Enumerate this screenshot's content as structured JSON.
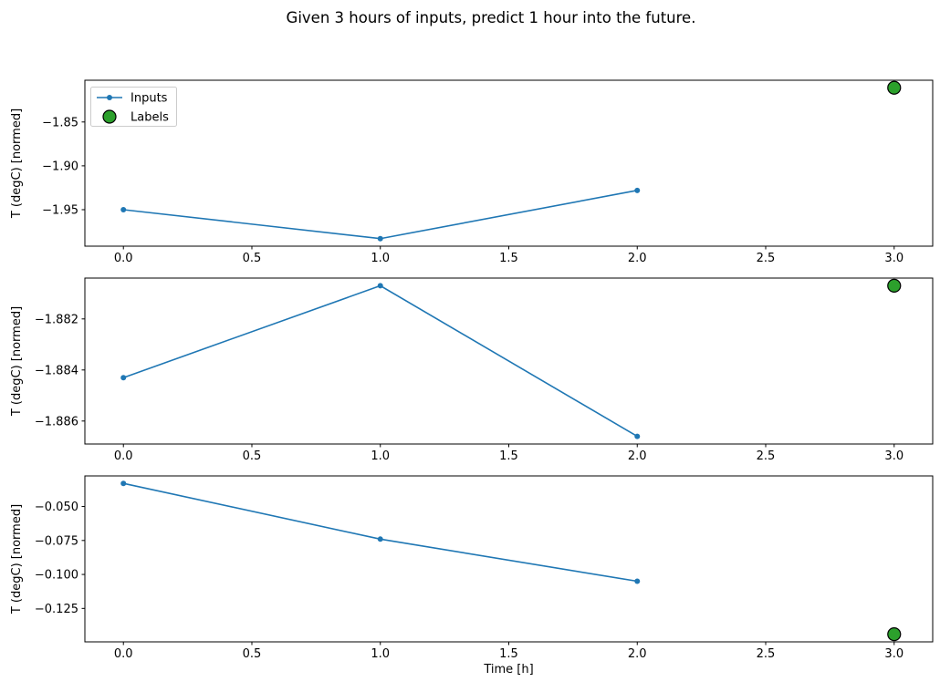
{
  "figure": {
    "title": "Given 3 hours of inputs, predict 1 hour into the future.",
    "background": "#ffffff"
  },
  "colors": {
    "inputs": "#1f77b4",
    "labels_fill": "#2ca02c",
    "labels_edge": "#000000",
    "axis": "#000000",
    "legend_border": "#cccccc"
  },
  "legend": {
    "position": "upper left",
    "items": [
      {
        "label": "Inputs",
        "marker": "line-with-dot",
        "color": "#1f77b4"
      },
      {
        "label": "Labels",
        "marker": "filled-circle",
        "color": "#2ca02c",
        "edge": "#000000"
      }
    ]
  },
  "chart_data": [
    {
      "type": "line",
      "title": "",
      "xlabel": "",
      "ylabel": "T (degC) [normed]",
      "x": [
        0.0,
        1.0,
        2.0
      ],
      "series": [
        {
          "name": "Inputs",
          "values": [
            -1.95,
            -1.983,
            -1.928
          ]
        }
      ],
      "labels_point": {
        "x": 3.0,
        "y": -1.811
      },
      "xlim": [
        -0.15,
        3.15
      ],
      "ylim": [
        -1.9916,
        -1.8024
      ],
      "xticks": [
        0.0,
        0.5,
        1.0,
        1.5,
        2.0,
        2.5,
        3.0
      ],
      "xtick_labels": [
        "0.0",
        "0.5",
        "1.0",
        "1.5",
        "2.0",
        "2.5",
        "3.0"
      ],
      "yticks": [
        -1.85,
        -1.9,
        -1.95
      ],
      "ytick_labels": [
        "−1.85",
        "−1.90",
        "−1.95"
      ],
      "grid": false,
      "legend": true
    },
    {
      "type": "line",
      "title": "",
      "xlabel": "",
      "ylabel": "T (degC) [normed]",
      "x": [
        0.0,
        1.0,
        2.0
      ],
      "series": [
        {
          "name": "Inputs",
          "values": [
            -1.8843,
            -1.8807,
            -1.8866
          ]
        }
      ],
      "labels_point": {
        "x": 3.0,
        "y": -1.8807
      },
      "xlim": [
        -0.15,
        3.15
      ],
      "ylim": [
        -1.8869,
        -1.8804
      ],
      "xticks": [
        0.0,
        0.5,
        1.0,
        1.5,
        2.0,
        2.5,
        3.0
      ],
      "xtick_labels": [
        "0.0",
        "0.5",
        "1.0",
        "1.5",
        "2.0",
        "2.5",
        "3.0"
      ],
      "yticks": [
        -1.882,
        -1.884,
        -1.886
      ],
      "ytick_labels": [
        "−1.882",
        "−1.884",
        "−1.886"
      ],
      "grid": false,
      "legend": false
    },
    {
      "type": "line",
      "title": "",
      "xlabel": "Time [h]",
      "ylabel": "T (degC) [normed]",
      "x": [
        0.0,
        1.0,
        2.0
      ],
      "series": [
        {
          "name": "Inputs",
          "values": [
            -0.033,
            -0.074,
            -0.105
          ]
        }
      ],
      "labels_point": {
        "x": 3.0,
        "y": -0.144
      },
      "xlim": [
        -0.15,
        3.15
      ],
      "ylim": [
        -0.1496,
        -0.0275
      ],
      "xticks": [
        0.0,
        0.5,
        1.0,
        1.5,
        2.0,
        2.5,
        3.0
      ],
      "xtick_labels": [
        "0.0",
        "0.5",
        "1.0",
        "1.5",
        "2.0",
        "2.5",
        "3.0"
      ],
      "yticks": [
        -0.05,
        -0.075,
        -0.1,
        -0.125
      ],
      "ytick_labels": [
        "−0.050",
        "−0.075",
        "−0.100",
        "−0.125"
      ],
      "grid": false,
      "legend": false
    }
  ]
}
